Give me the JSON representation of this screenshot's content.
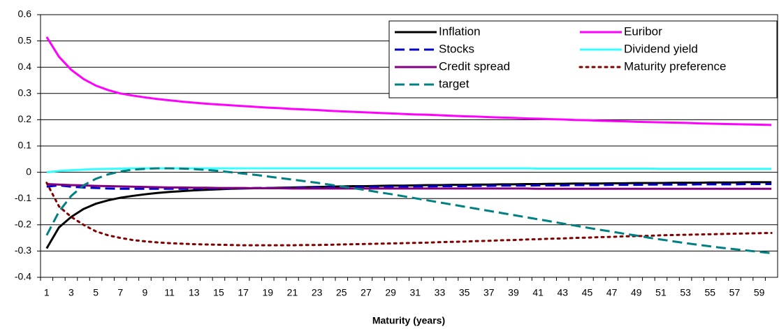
{
  "chart_data": {
    "type": "line",
    "x_label": "Maturity (years)",
    "categories": [
      1,
      null,
      3,
      null,
      5,
      null,
      7,
      null,
      9,
      null,
      11,
      null,
      13,
      null,
      15,
      null,
      17,
      null,
      19,
      null,
      21,
      null,
      23,
      null,
      25,
      null,
      27,
      null,
      29,
      null,
      31,
      null,
      33,
      null,
      35,
      null,
      37,
      null,
      39,
      null,
      41,
      null,
      43,
      null,
      45,
      null,
      47,
      null,
      49,
      null,
      51,
      null,
      53,
      null,
      55,
      null,
      57,
      null,
      59,
      null
    ],
    "ylim": [
      -0.4,
      0.6
    ],
    "yticks": [
      -0.4,
      -0.3,
      -0.2,
      -0.1,
      0,
      0.1,
      0.2,
      0.3,
      0.4,
      0.5,
      0.6
    ],
    "grid": true,
    "series": [
      {
        "name": "Inflation",
        "color": "#000000",
        "style": "solid",
        "values": [
          -0.29,
          -0.21,
          -0.17,
          -0.14,
          -0.12,
          -0.107,
          -0.097,
          -0.09,
          -0.084,
          -0.079,
          -0.075,
          -0.072,
          -0.069,
          -0.067,
          -0.065,
          -0.063,
          -0.062,
          -0.061,
          -0.06,
          -0.059,
          -0.058,
          -0.057,
          -0.056,
          -0.055,
          -0.054,
          -0.053,
          -0.053,
          -0.052,
          -0.051,
          -0.051,
          -0.05,
          -0.049,
          -0.049,
          -0.048,
          -0.048,
          -0.047,
          -0.047,
          -0.046,
          -0.046,
          -0.045,
          -0.045,
          -0.044,
          -0.044,
          -0.043,
          -0.043,
          -0.043,
          -0.042,
          -0.042,
          -0.041,
          -0.041,
          -0.041,
          -0.04,
          -0.04,
          -0.04,
          -0.039,
          -0.039,
          -0.039,
          -0.038,
          -0.038,
          -0.038
        ]
      },
      {
        "name": "Euribor",
        "color": "#ff00ff",
        "style": "solid",
        "values": [
          0.515,
          0.44,
          0.39,
          0.355,
          0.33,
          0.313,
          0.3,
          0.292,
          0.285,
          0.279,
          0.274,
          0.269,
          0.265,
          0.261,
          0.258,
          0.255,
          0.252,
          0.249,
          0.246,
          0.244,
          0.241,
          0.239,
          0.237,
          0.234,
          0.232,
          0.23,
          0.228,
          0.226,
          0.224,
          0.222,
          0.22,
          0.219,
          0.217,
          0.215,
          0.213,
          0.212,
          0.21,
          0.208,
          0.207,
          0.205,
          0.204,
          0.202,
          0.201,
          0.199,
          0.198,
          0.196,
          0.195,
          0.194,
          0.192,
          0.191,
          0.19,
          0.189,
          0.188,
          0.186,
          0.185,
          0.184,
          0.183,
          0.182,
          0.181,
          0.18
        ]
      },
      {
        "name": "Stocks",
        "color": "#0000cc",
        "style": "dashed",
        "values": [
          -0.055,
          -0.05,
          -0.055,
          -0.058,
          -0.06,
          -0.062,
          -0.063,
          -0.063,
          -0.063,
          -0.063,
          -0.063,
          -0.063,
          -0.062,
          -0.062,
          -0.062,
          -0.061,
          -0.061,
          -0.06,
          -0.06,
          -0.06,
          -0.059,
          -0.059,
          -0.058,
          -0.058,
          -0.057,
          -0.057,
          -0.056,
          -0.056,
          -0.055,
          -0.055,
          -0.054,
          -0.054,
          -0.053,
          -0.053,
          -0.053,
          -0.052,
          -0.052,
          -0.051,
          -0.051,
          -0.051,
          -0.05,
          -0.05,
          -0.05,
          -0.049,
          -0.049,
          -0.049,
          -0.048,
          -0.048,
          -0.048,
          -0.047,
          -0.047,
          -0.047,
          -0.047,
          -0.046,
          -0.046,
          -0.046,
          -0.046,
          -0.045,
          -0.045,
          -0.045
        ]
      },
      {
        "name": "Dividend yield",
        "color": "#33ffff",
        "style": "solid",
        "values": [
          0,
          0.005,
          0.008,
          0.01,
          0.012,
          0.013,
          0.014,
          0.015,
          0.015,
          0.015,
          0.015,
          0.015,
          0.015,
          0.015,
          0.015,
          0.015,
          0.015,
          0.015,
          0.015,
          0.015,
          0.015,
          0.015,
          0.015,
          0.015,
          0.015,
          0.015,
          0.015,
          0.015,
          0.015,
          0.015,
          0.015,
          0.015,
          0.015,
          0.015,
          0.015,
          0.015,
          0.015,
          0.015,
          0.015,
          0.015,
          0.014,
          0.014,
          0.014,
          0.014,
          0.014,
          0.014,
          0.014,
          0.014,
          0.014,
          0.014,
          0.013,
          0.013,
          0.013,
          0.013,
          0.013,
          0.013,
          0.013,
          0.013,
          0.013,
          0.013
        ]
      },
      {
        "name": "Credit spread",
        "color": "#800080",
        "style": "solid",
        "values": [
          -0.045,
          -0.047,
          -0.049,
          -0.05,
          -0.052,
          -0.053,
          -0.054,
          -0.055,
          -0.056,
          -0.057,
          -0.058,
          -0.058,
          -0.059,
          -0.059,
          -0.06,
          -0.06,
          -0.06,
          -0.061,
          -0.061,
          -0.061,
          -0.062,
          -0.062,
          -0.062,
          -0.062,
          -0.062,
          -0.062,
          -0.062,
          -0.062,
          -0.062,
          -0.062,
          -0.062,
          -0.062,
          -0.062,
          -0.062,
          -0.062,
          -0.062,
          -0.062,
          -0.062,
          -0.062,
          -0.062,
          -0.063,
          -0.063,
          -0.063,
          -0.063,
          -0.063,
          -0.063,
          -0.063,
          -0.063,
          -0.063,
          -0.063,
          -0.063,
          -0.063,
          -0.063,
          -0.063,
          -0.063,
          -0.063,
          -0.063,
          -0.063,
          -0.063,
          -0.063
        ]
      },
      {
        "name": "Maturity preference",
        "color": "#800000",
        "style": "dotted",
        "values": [
          -0.04,
          -0.13,
          -0.17,
          -0.2,
          -0.225,
          -0.24,
          -0.25,
          -0.258,
          -0.263,
          -0.267,
          -0.27,
          -0.272,
          -0.274,
          -0.275,
          -0.276,
          -0.277,
          -0.278,
          -0.278,
          -0.278,
          -0.278,
          -0.278,
          -0.277,
          -0.277,
          -0.276,
          -0.275,
          -0.274,
          -0.273,
          -0.272,
          -0.271,
          -0.27,
          -0.269,
          -0.268,
          -0.266,
          -0.265,
          -0.264,
          -0.262,
          -0.261,
          -0.259,
          -0.258,
          -0.256,
          -0.255,
          -0.253,
          -0.252,
          -0.25,
          -0.249,
          -0.247,
          -0.246,
          -0.244,
          -0.243,
          -0.242,
          -0.24,
          -0.239,
          -0.238,
          -0.237,
          -0.236,
          -0.235,
          -0.234,
          -0.233,
          -0.232,
          -0.231
        ]
      },
      {
        "name": "target",
        "color": "#008080",
        "style": "dashed",
        "values": [
          -0.24,
          -0.15,
          -0.09,
          -0.05,
          -0.025,
          -0.008,
          0.003,
          0.01,
          0.013,
          0.015,
          0.015,
          0.014,
          0.012,
          0.009,
          0.005,
          0,
          -0.005,
          -0.01,
          -0.016,
          -0.022,
          -0.028,
          -0.034,
          -0.04,
          -0.047,
          -0.054,
          -0.061,
          -0.068,
          -0.076,
          -0.083,
          -0.091,
          -0.099,
          -0.107,
          -0.115,
          -0.123,
          -0.131,
          -0.139,
          -0.147,
          -0.155,
          -0.163,
          -0.171,
          -0.179,
          -0.187,
          -0.195,
          -0.203,
          -0.211,
          -0.219,
          -0.226,
          -0.234,
          -0.241,
          -0.249,
          -0.256,
          -0.263,
          -0.27,
          -0.276,
          -0.282,
          -0.288,
          -0.293,
          -0.298,
          -0.303,
          -0.308
        ]
      }
    ]
  }
}
